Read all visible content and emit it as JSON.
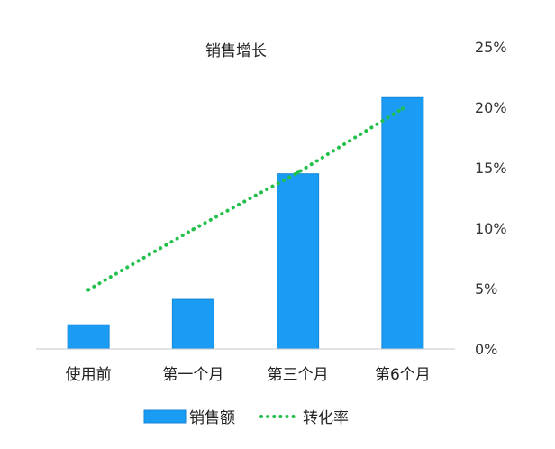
{
  "chart_data": {
    "type": "bar+line",
    "title": "销售增长",
    "categories": [
      "使用前",
      "第一个月",
      "第三个月",
      "第6个月"
    ],
    "series": [
      {
        "name": "销售额",
        "type": "bar",
        "color": "#1a9cf5",
        "values": [
          2.0,
          4.1,
          14.5,
          20.8
        ]
      },
      {
        "name": "转化率",
        "type": "line",
        "style": "dotted",
        "color": "#22c04a",
        "values": [
          4.9,
          9.9,
          14.6,
          19.9
        ]
      }
    ],
    "y_axis": {
      "position": "right",
      "ylim": [
        0,
        25
      ],
      "ticks": [
        "0%",
        "5%",
        "10%",
        "15%",
        "20%",
        "25%"
      ],
      "gridlines": false
    },
    "legend_position": "bottom"
  }
}
